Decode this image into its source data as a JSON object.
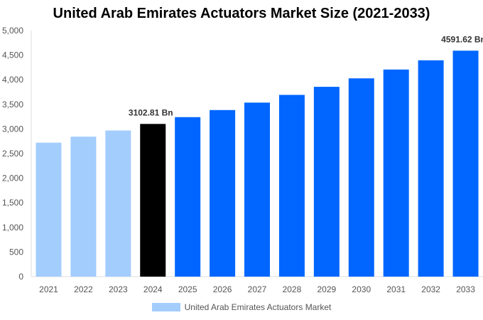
{
  "chart_data": {
    "type": "bar",
    "title": "United Arab Emirates Actuators Market Size (2021-2033)",
    "categories": [
      "2021",
      "2022",
      "2023",
      "2024",
      "2025",
      "2026",
      "2027",
      "2028",
      "2029",
      "2030",
      "2031",
      "2032",
      "2033"
    ],
    "series": [
      {
        "name": "United Arab Emirates Actuators Market",
        "values": [
          2722,
          2844,
          2970,
          3102.81,
          3241,
          3385,
          3536,
          3693,
          3857,
          4029,
          4208,
          4396,
          4591.62
        ]
      }
    ],
    "data_labels": {
      "3": "3102.81 Bn",
      "12": "4591.62 Bn"
    },
    "ylim": [
      0,
      5000
    ],
    "yticks": [
      "0",
      "500",
      "1,000",
      "1,500",
      "2,000",
      "2,500",
      "3,000",
      "3,500",
      "4,000",
      "4,500",
      "5,000"
    ],
    "colors": {
      "historical": "#a3cdfd",
      "base_year": "#000000",
      "forecast": "#0066ff"
    },
    "legend_position": "bottom",
    "grid": false
  }
}
